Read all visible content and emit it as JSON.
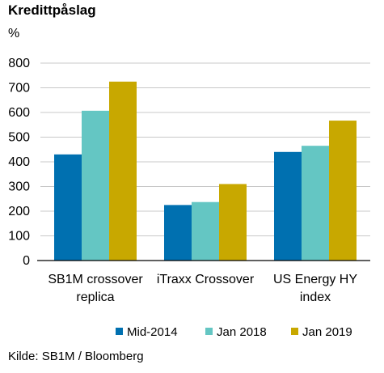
{
  "title": "Kredittpåslag",
  "unit": "%",
  "source": "Kilde: SB1M / Bloomberg",
  "chart_data": {
    "type": "bar",
    "categories": [
      "SB1M crossover replica",
      "iTraxx Crossover",
      "US Energy HY index"
    ],
    "category_lines": [
      [
        "SB1M crossover",
        "replica"
      ],
      [
        "iTraxx Crossover"
      ],
      [
        "US Energy HY",
        "index"
      ]
    ],
    "series": [
      {
        "name": "Mid-2014",
        "values": [
          430,
          225,
          440
        ],
        "color": "#0070b0"
      },
      {
        "name": "Jan 2018",
        "values": [
          607,
          237,
          465
        ],
        "color": "#64c6c3"
      },
      {
        "name": "Jan 2019",
        "values": [
          725,
          310,
          567
        ],
        "color": "#c8a800"
      }
    ],
    "ylim": [
      0,
      800
    ],
    "yticks": [
      0,
      100,
      200,
      300,
      400,
      500,
      600,
      700,
      800
    ],
    "grid": true,
    "legend_position": "bottom"
  }
}
